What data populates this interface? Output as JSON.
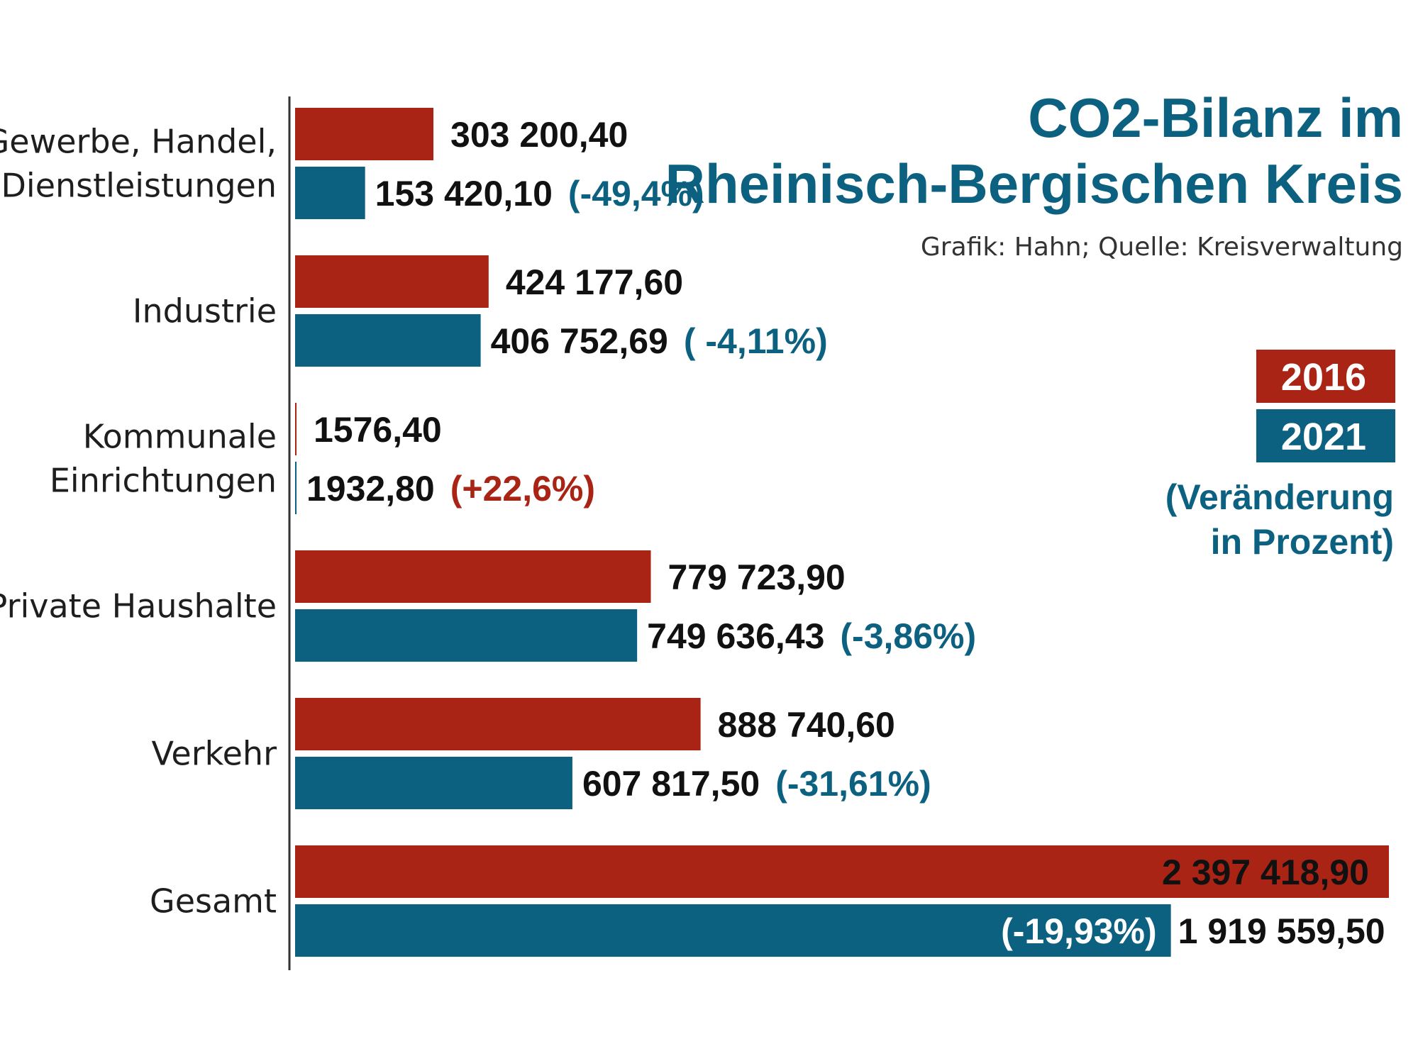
{
  "title": {
    "line1": "CO2-Bilanz im",
    "line2": "Rheinisch-Bergischen Kreis"
  },
  "credit": "Grafik: Hahn; Quelle: Kreisverwaltung",
  "colors": {
    "y2016": "#a92414",
    "y2021": "#0d6180",
    "title": "#0d6180",
    "axis": "#333333"
  },
  "legend": {
    "year1": "2016",
    "year2": "2021",
    "note_line1": "(Veränderung",
    "note_line2": "in Prozent)"
  },
  "chart_data": {
    "type": "bar",
    "orientation": "horizontal",
    "title": "CO2-Bilanz im Rheinisch-Bergischen Kreis",
    "categories": [
      [
        "Gewerbe, Handel,",
        "Dienstleistungen"
      ],
      [
        "Industrie"
      ],
      [
        "Kommunale",
        "Einrichtungen"
      ],
      [
        "Private Haushalte"
      ],
      [
        "Verkehr"
      ],
      [
        "Gesamt"
      ]
    ],
    "series": [
      {
        "name": "2016",
        "values": [
          303200.4,
          424177.6,
          1576.4,
          779723.9,
          888740.6,
          2397418.9
        ],
        "labels": [
          "303 200,40",
          "424 177,60",
          "1576,40",
          "779 723,90",
          "888 740,60",
          "2 397 418,90"
        ]
      },
      {
        "name": "2021",
        "values": [
          153420.1,
          406752.69,
          1932.8,
          749636.43,
          607817.5,
          1919559.5
        ],
        "labels": [
          "153 420,10",
          "406 752,69",
          "1932,80",
          "749 636,43",
          "607 817,50",
          "1 919 559,50"
        ],
        "changes": [
          "(-49,4%)",
          "( -4,11%)",
          "(+22,6%)",
          "(-3,86%)",
          "(-31,61%)",
          "(-19,93%)"
        ]
      }
    ],
    "xlim": [
      0,
      2397418.9
    ],
    "legend_position": "right",
    "grid": false
  }
}
